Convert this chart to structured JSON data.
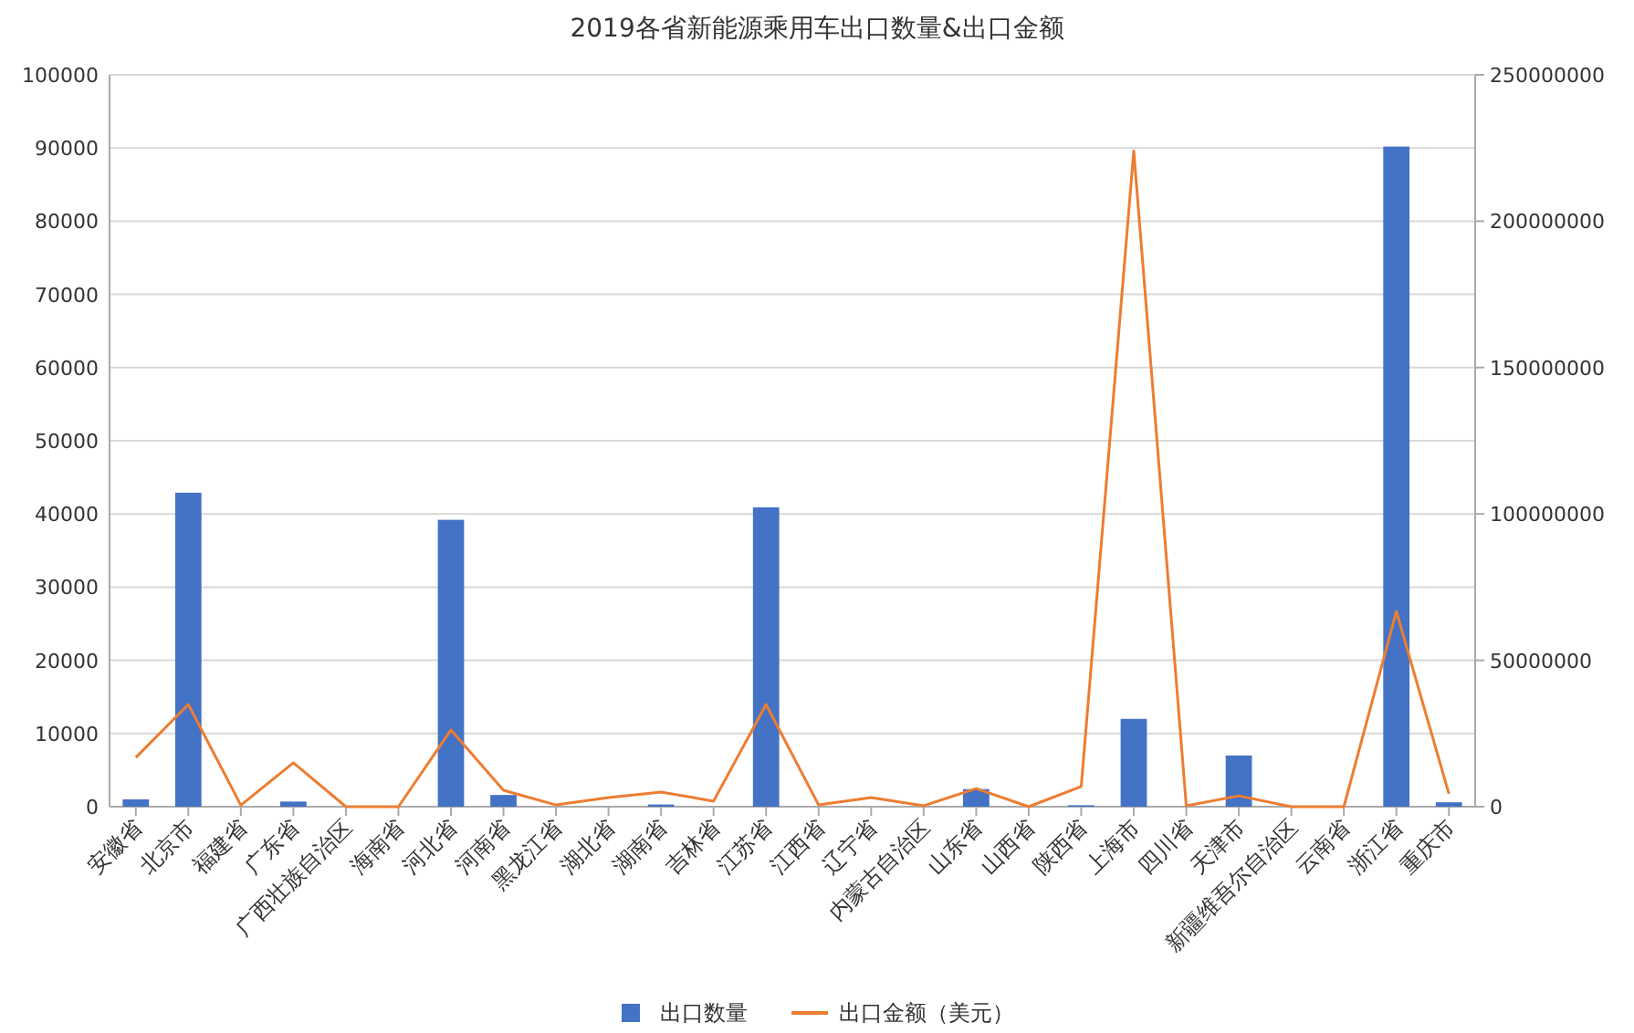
{
  "chart_data": {
    "type": "bar",
    "title": "2019各省新能源乘用车出口数量&出口金额",
    "categories": [
      "安徽省",
      "北京市",
      "福建省",
      "广东省",
      "广西壮族自治区",
      "海南省",
      "河北省",
      "河南省",
      "黑龙江省",
      "湖北省",
      "湖南省",
      "吉林省",
      "江苏省",
      "江西省",
      "辽宁省",
      "内蒙古自治区",
      "山东省",
      "山西省",
      "陕西省",
      "上海市",
      "四川省",
      "天津市",
      "新疆维吾尔自治区",
      "云南省",
      "浙江省",
      "重庆市"
    ],
    "series": [
      {
        "name": "出口数量",
        "color": "#4472c4",
        "values": [
          1000,
          42900,
          0,
          700,
          0,
          0,
          39200,
          1600,
          0,
          0,
          300,
          0,
          40900,
          0,
          0,
          0,
          2400,
          0,
          200,
          12000,
          0,
          7000,
          0,
          0,
          90200,
          600
        ]
      },
      {
        "name": "出口金额（美元）",
        "type": "line",
        "axis": "y2",
        "color": "#ed7d31",
        "values": [
          16800000,
          34900000,
          500000,
          15000000,
          0,
          0,
          26200000,
          5600000,
          600000,
          3100000,
          5000000,
          1900000,
          34900000,
          600000,
          3100000,
          300000,
          6200000,
          0,
          6900000,
          224000000,
          300000,
          3700000,
          0,
          0,
          66700000,
          4400000
        ]
      }
    ],
    "ylim": [
      0,
      100000
    ],
    "yticks": [
      0,
      10000,
      20000,
      30000,
      40000,
      50000,
      60000,
      70000,
      80000,
      90000,
      100000
    ],
    "y2lim": [
      0,
      250000000
    ],
    "y2ticks": [
      0,
      50000000,
      100000000,
      150000000,
      200000000,
      250000000
    ],
    "grid": "y",
    "legend": "bottom"
  }
}
